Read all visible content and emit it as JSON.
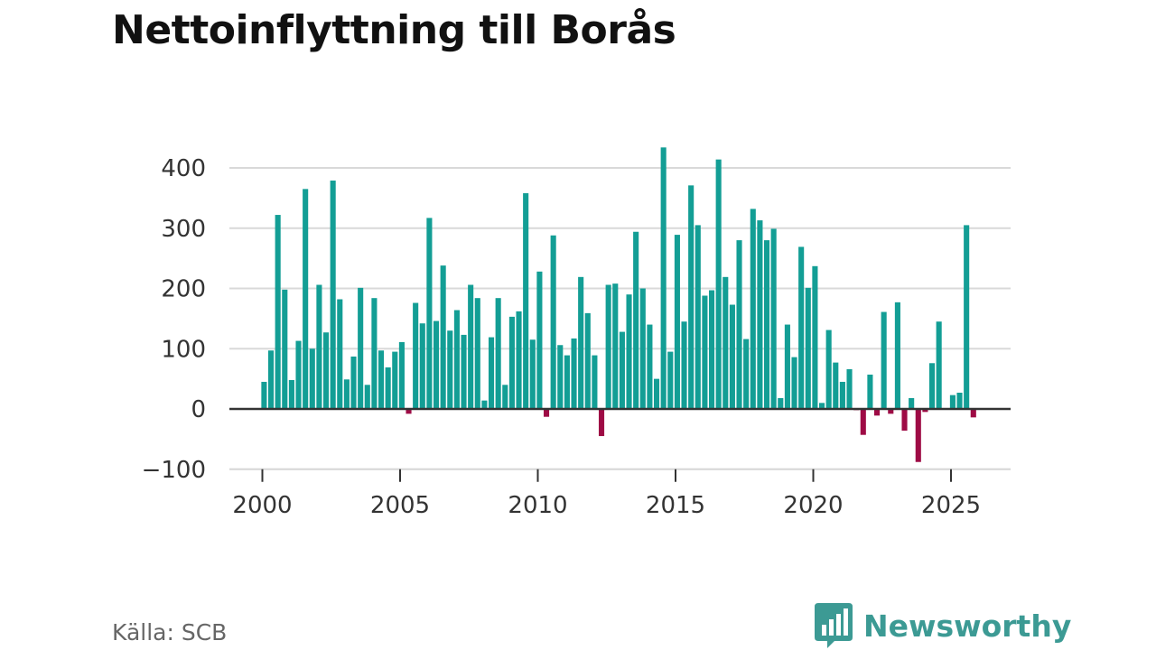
{
  "title": "Nettoinflyttning till Borås",
  "source": "Källa: SCB",
  "brand": {
    "name": "Newsworthy",
    "icon": "bar-chart-badge-icon",
    "color": "#3c9a94"
  },
  "colors": {
    "positive": "#139e95",
    "negative": "#9e0b45",
    "grid": "#d9d9d9",
    "zero_line": "#333333",
    "text": "#333333"
  },
  "chart_data": {
    "type": "bar",
    "title": "Nettoinflyttning till Borås",
    "xlabel": "",
    "ylabel": "",
    "ylim": [
      -100,
      430
    ],
    "yticks": [
      -100,
      0,
      100,
      200,
      300,
      400
    ],
    "xticks": [
      2000,
      2005,
      2010,
      2015,
      2020,
      2025
    ],
    "grid": true,
    "legend": "none",
    "series": [
      {
        "start_year": 2000,
        "periods_per_year": 4,
        "values": [
          45,
          97,
          322,
          198,
          48,
          113,
          365,
          100,
          206,
          127,
          379,
          182,
          49,
          87,
          201,
          40,
          184,
          97,
          69,
          95,
          111,
          -8,
          176,
          142,
          317,
          146,
          238,
          130,
          164,
          123,
          206,
          184,
          14,
          119,
          184,
          40,
          153,
          162,
          358,
          115,
          228,
          -13,
          288,
          106,
          89,
          117,
          219,
          159,
          89,
          -45,
          206,
          208,
          128,
          190,
          294,
          200,
          140,
          50,
          434,
          95,
          289,
          145,
          371,
          305,
          188,
          197,
          414,
          219,
          173,
          280,
          116,
          332,
          313,
          280,
          299,
          18,
          140,
          86,
          269,
          201,
          237,
          10,
          131,
          77,
          45,
          66,
          -2,
          -43,
          57,
          -11,
          161,
          -8,
          177,
          -36,
          18,
          -88,
          -5,
          76,
          145,
          0,
          23,
          27,
          305,
          -14
        ]
      }
    ]
  }
}
